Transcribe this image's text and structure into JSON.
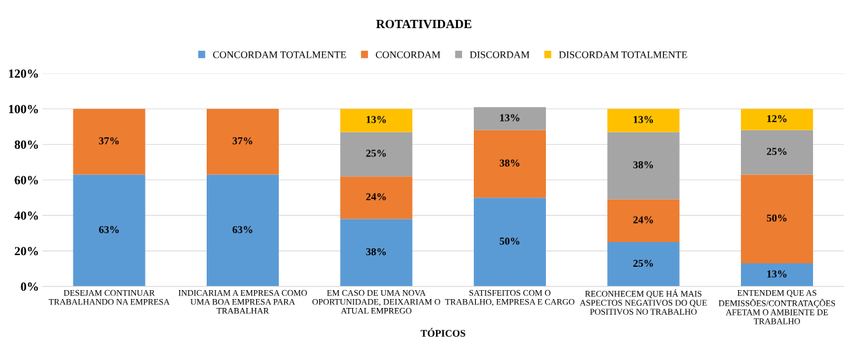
{
  "chart_data": {
    "type": "bar",
    "stacked": true,
    "title": "ROTATIVIDADE",
    "xlabel": "TÓPICOS",
    "categories": [
      "DESEJAM CONTINUAR TRABALHANDO NA EMPRESA",
      "INDICARIAM A EMPRESA COMO UMA BOA EMPRESA PARA TRABALHAR",
      "EM CASO DE UMA NOVA OPORTUNIDADE, DEIXARIAM O ATUAL EMPREGO",
      "SATISFEITOS COM O TRABALHO, EMPRESA E CARGO",
      "RECONHECEM QUE HÁ MAIS ASPECTOS NEGATIVOS DO QUE POSITIVOS NO TRABALHO",
      "ENTENDEM QUE AS DEMISSÕES/CONTRATAÇÕES AFETAM O AMBIENTE DE TRABALHO"
    ],
    "series": [
      {
        "name": "CONCORDAM TOTALMENTE",
        "color": "#5b9bd5",
        "values": [
          63,
          63,
          38,
          50,
          25,
          13
        ],
        "value_labels": [
          "63%",
          "63%",
          "38%",
          "50%",
          "25%",
          "13%"
        ]
      },
      {
        "name": "CONCORDAM",
        "color": "#ed7d31",
        "values": [
          37,
          37,
          24,
          38,
          24,
          50
        ],
        "value_labels": [
          "37%",
          "37%",
          "24%",
          "38%",
          "24%",
          "50%"
        ]
      },
      {
        "name": "DISCORDAM",
        "color": "#a5a5a5",
        "values": [
          null,
          null,
          25,
          13,
          38,
          25
        ],
        "value_labels": [
          null,
          null,
          "25%",
          "13%",
          "38%",
          "25%"
        ]
      },
      {
        "name": "DISCORDAM TOTALMENTE",
        "color": "#ffc000",
        "values": [
          null,
          null,
          13,
          null,
          13,
          12
        ],
        "value_labels": [
          null,
          null,
          "13%",
          null,
          "13%",
          "12%"
        ]
      }
    ],
    "ylim": [
      0,
      120
    ],
    "yticks": [
      {
        "value": 0,
        "label": "0%"
      },
      {
        "value": 20,
        "label": "20%"
      },
      {
        "value": 40,
        "label": "40%"
      },
      {
        "value": 60,
        "label": "60%"
      },
      {
        "value": 80,
        "label": "80%"
      },
      {
        "value": 100,
        "label": "100%"
      },
      {
        "value": 120,
        "label": "120%"
      }
    ],
    "grid": "y",
    "legend": "top"
  }
}
